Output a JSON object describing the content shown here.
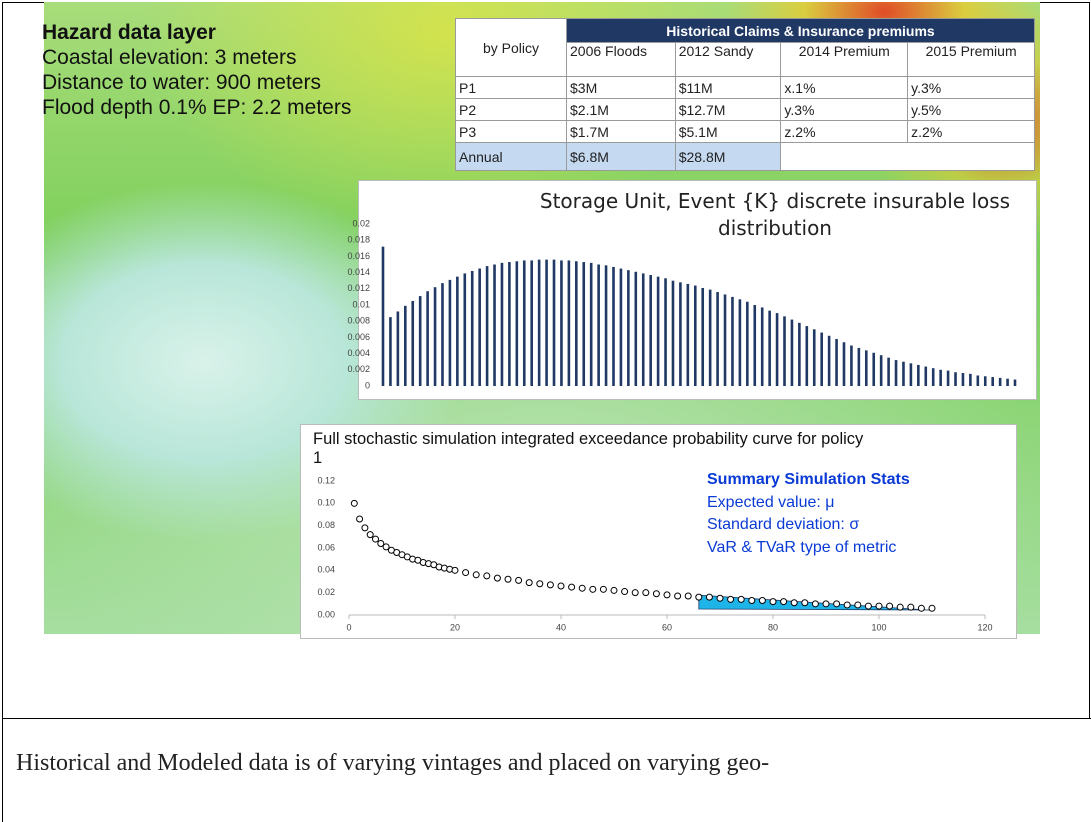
{
  "hazard": {
    "title": "Hazard data layer",
    "lines": [
      "Coastal elevation: 3 meters",
      "Distance to water: 900 meters",
      "Flood depth 0.1% EP: 2.2 meters"
    ]
  },
  "table": {
    "corner": "by Policy",
    "title": "Historical Claims & Insurance premiums",
    "columns": [
      "2006 Floods",
      "2012 Sandy",
      "2014 Premium",
      "2015 Premium"
    ],
    "rows": [
      [
        "P1",
        "$3M",
        "$11M",
        "x.1%",
        "y.3%"
      ],
      [
        "P2",
        "$2.1M",
        "$12.7M",
        "y.3%",
        "y.5%"
      ],
      [
        "P3",
        "$1.7M",
        "$5.1M",
        "z.2%",
        "z.2%"
      ]
    ],
    "total": [
      "Annual",
      "$6.8M",
      "$28.8M"
    ]
  },
  "chart_data": [
    {
      "type": "bar",
      "title": "Storage Unit, Event {K} discrete insurable loss distribution",
      "color": "#1f3864",
      "values": [
        0.0172,
        0.0085,
        0.0092,
        0.0099,
        0.0105,
        0.0111,
        0.0117,
        0.0122,
        0.0127,
        0.0131,
        0.0135,
        0.0139,
        0.0142,
        0.0145,
        0.0148,
        0.015,
        0.0152,
        0.0153,
        0.0154,
        0.0155,
        0.0155,
        0.0156,
        0.0156,
        0.0156,
        0.0155,
        0.0155,
        0.0154,
        0.0153,
        0.0152,
        0.015,
        0.0149,
        0.0147,
        0.0145,
        0.0143,
        0.0141,
        0.0139,
        0.0137,
        0.0135,
        0.0133,
        0.013,
        0.0128,
        0.0126,
        0.0124,
        0.0121,
        0.0119,
        0.0116,
        0.0113,
        0.011,
        0.0107,
        0.0104,
        0.01,
        0.0097,
        0.0093,
        0.009,
        0.0086,
        0.0082,
        0.0078,
        0.0074,
        0.007,
        0.0066,
        0.0062,
        0.0058,
        0.0054,
        0.005,
        0.0047,
        0.0044,
        0.0041,
        0.0038,
        0.0035,
        0.0032,
        0.003,
        0.0028,
        0.0026,
        0.0024,
        0.0022,
        0.002,
        0.0019,
        0.0017,
        0.0016,
        0.0015,
        0.0013,
        0.0012,
        0.0011,
        0.001,
        0.0009,
        0.0008
      ],
      "ylim": [
        0,
        0.02
      ],
      "yticks": [
        0,
        0.002,
        0.004,
        0.006,
        0.008,
        0.01,
        0.012,
        0.014,
        0.016,
        0.018,
        0.02
      ]
    },
    {
      "type": "scatter",
      "title": "Full stochastic simulation integrated exceedance probability curve for policy 1",
      "annotations": [
        "Summary Simulation Stats",
        "Expected value: μ",
        "Standard deviation: σ",
        "VaR & TVaR type of metric"
      ],
      "color": "#000000",
      "tail_color": "#1fb4e8",
      "x": [
        1,
        2,
        3,
        4,
        5,
        6,
        7,
        8,
        9,
        10,
        11,
        12,
        13,
        14,
        15,
        16,
        17,
        18,
        19,
        20,
        22,
        24,
        26,
        28,
        30,
        32,
        34,
        36,
        38,
        40,
        42,
        44,
        46,
        48,
        50,
        52,
        54,
        56,
        58,
        60,
        62,
        64,
        66,
        68,
        70,
        72,
        74,
        76,
        78,
        80,
        82,
        84,
        86,
        88,
        90,
        92,
        94,
        96,
        98,
        100,
        102,
        104,
        106,
        108,
        110
      ],
      "values": [
        0.1,
        0.086,
        0.078,
        0.072,
        0.068,
        0.064,
        0.061,
        0.058,
        0.056,
        0.054,
        0.052,
        0.05,
        0.049,
        0.047,
        0.046,
        0.045,
        0.043,
        0.042,
        0.041,
        0.04,
        0.038,
        0.036,
        0.035,
        0.033,
        0.032,
        0.031,
        0.029,
        0.028,
        0.027,
        0.026,
        0.025,
        0.024,
        0.023,
        0.023,
        0.022,
        0.021,
        0.02,
        0.02,
        0.019,
        0.018,
        0.017,
        0.017,
        0.016,
        0.016,
        0.015,
        0.014,
        0.014,
        0.013,
        0.013,
        0.012,
        0.012,
        0.011,
        0.011,
        0.01,
        0.01,
        0.01,
        0.009,
        0.009,
        0.008,
        0.008,
        0.008,
        0.007,
        0.007,
        0.006,
        0.006
      ],
      "xlim": [
        0,
        120
      ],
      "xticks": [
        0,
        20,
        40,
        60,
        80,
        100,
        120
      ],
      "ylim": [
        0,
        0.12
      ],
      "yticks": [
        {
          "value": 0,
          "label": "0.00"
        },
        0.02,
        0.04,
        0.06,
        0.08,
        {
          "value": 0.1,
          "label": "0.10"
        },
        0.12
      ]
    }
  ],
  "caption": "Historical and Modeled data is of varying vintages and placed on varying geo-"
}
